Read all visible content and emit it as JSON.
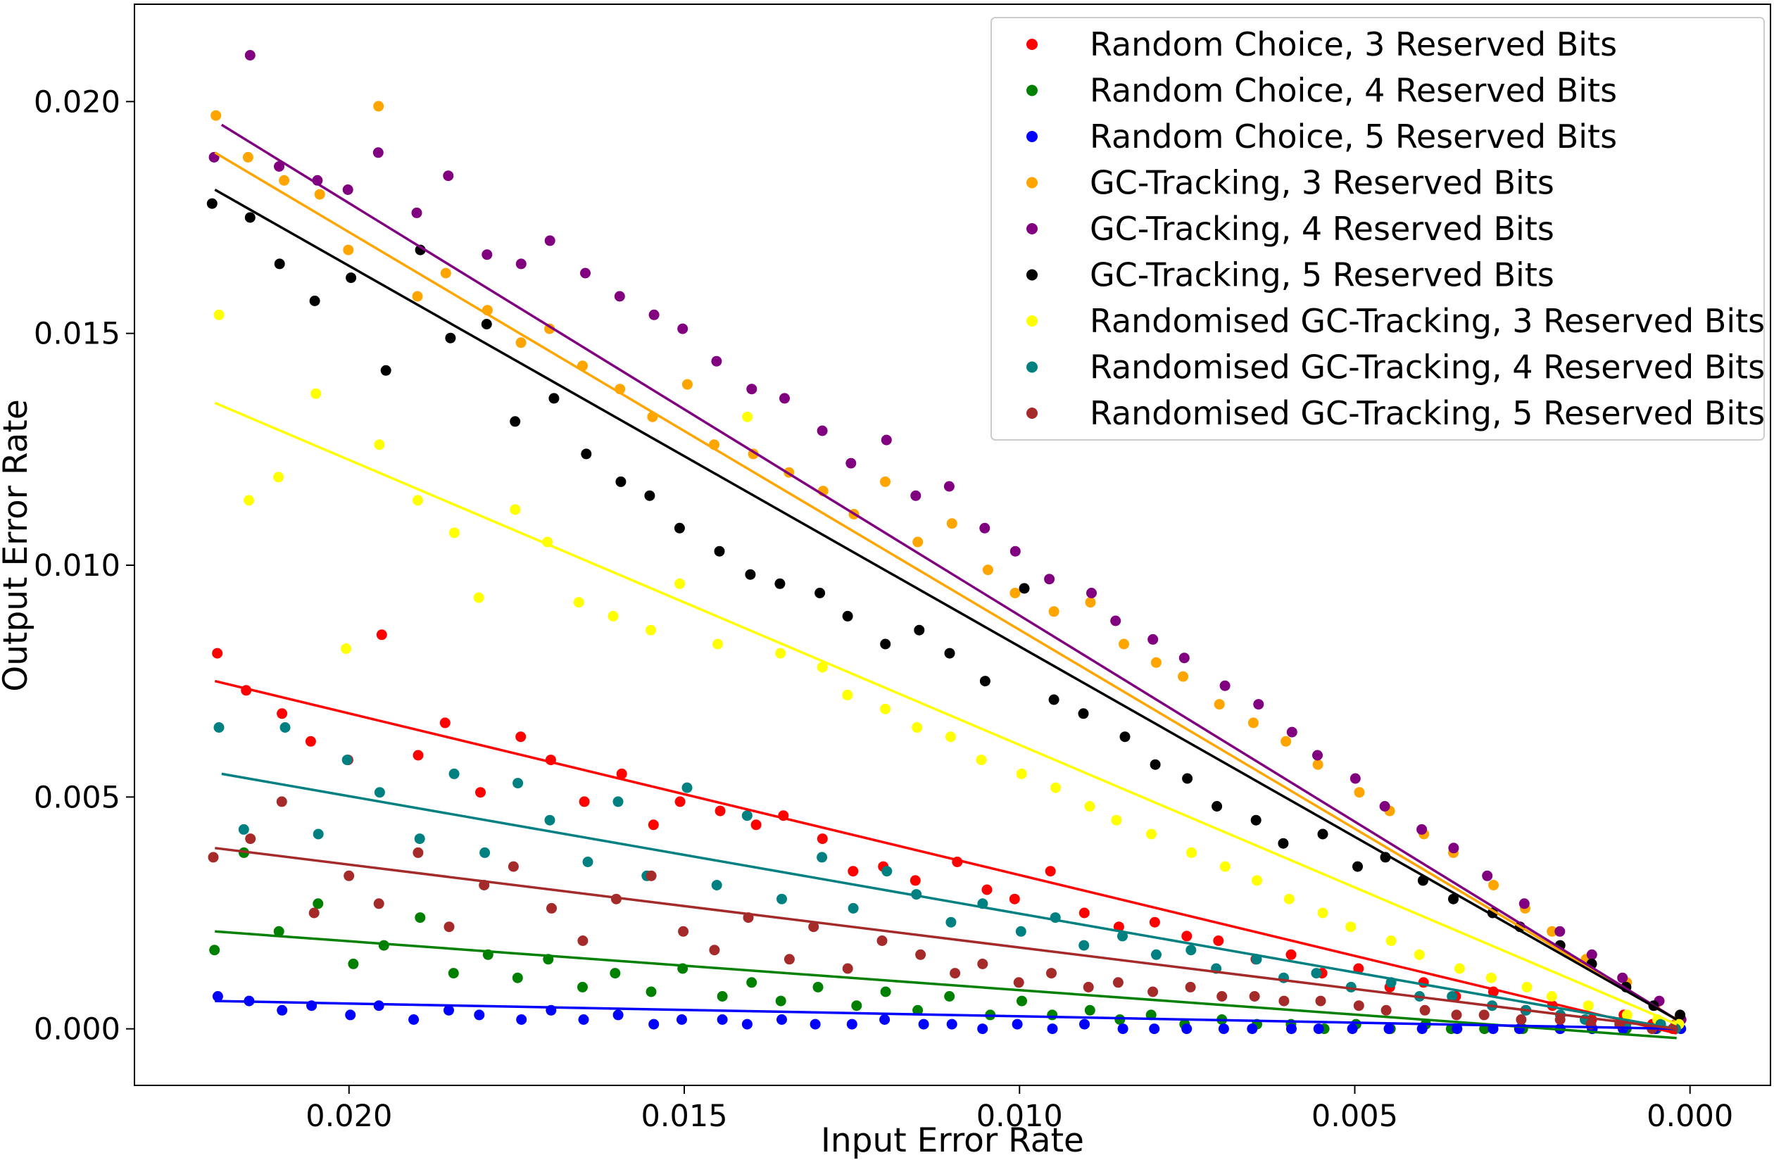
{
  "chart_data": {
    "type": "scatter",
    "title": "",
    "xlabel": "Input Error Rate",
    "ylabel": "Output Error Rate",
    "xlim": [
      0.0232,
      -0.0012
    ],
    "ylim": [
      -0.00122,
      0.0221
    ],
    "x_inverted": true,
    "grid": false,
    "legend_position": "upper right",
    "xticks": [
      0.02,
      0.015,
      0.01,
      0.005,
      0.0
    ],
    "xtick_labels": [
      "0.020",
      "0.015",
      "0.010",
      "0.005",
      "0.000"
    ],
    "yticks": [
      0.0,
      0.005,
      0.01,
      0.015,
      0.02
    ],
    "ytick_labels": [
      "0.000",
      "0.005",
      "0.010",
      "0.015",
      "0.020"
    ],
    "x": [
      0.022,
      0.0215,
      0.021,
      0.0205,
      0.02,
      0.0195,
      0.019,
      0.0185,
      0.018,
      0.0175,
      0.017,
      0.0165,
      0.016,
      0.0155,
      0.015,
      0.0145,
      0.014,
      0.0135,
      0.013,
      0.0125,
      0.012,
      0.0115,
      0.011,
      0.0105,
      0.01,
      0.0095,
      0.009,
      0.0085,
      0.008,
      0.0075,
      0.007,
      0.0065,
      0.006,
      0.0055,
      0.005,
      0.0045,
      0.004,
      0.0035,
      0.003,
      0.0025,
      0.002,
      0.0015,
      0.001,
      0.0005,
      0.0002
    ],
    "series": [
      {
        "name": "Random Choice, 3 Reserved Bits",
        "color": "#ff0000",
        "trend": [
          [
            0.022,
            0.0075
          ],
          [
            0.0002,
            -0.0001
          ]
        ],
        "y": [
          0.0081,
          0.0073,
          0.0068,
          0.0062,
          0.0058,
          0.0085,
          0.0059,
          0.0066,
          0.0051,
          0.0063,
          0.0058,
          0.0049,
          0.0055,
          0.0044,
          0.0049,
          0.0047,
          0.0044,
          0.0046,
          0.0041,
          0.0034,
          0.0035,
          0.0032,
          0.0036,
          0.003,
          0.0028,
          0.0034,
          0.0025,
          0.0022,
          0.0023,
          0.002,
          0.0019,
          0.0015,
          0.0016,
          0.0012,
          0.0013,
          0.0009,
          0.001,
          0.0007,
          0.0008,
          0.0004,
          0.0005,
          0.0002,
          0.0003,
          0.0001,
          0.0001
        ]
      },
      {
        "name": "Random Choice, 4 Reserved Bits",
        "color": "#008000",
        "trend": [
          [
            0.022,
            0.0021
          ],
          [
            0.0002,
            -0.0002
          ]
        ],
        "y": [
          0.0017,
          0.0038,
          0.0021,
          0.0027,
          0.0014,
          0.0018,
          0.0024,
          0.0012,
          0.0016,
          0.0011,
          0.0015,
          0.0009,
          0.0012,
          0.0008,
          0.0013,
          0.0007,
          0.001,
          0.0006,
          0.0009,
          0.0005,
          0.0008,
          0.0004,
          0.0007,
          0.0003,
          0.0006,
          0.0003,
          0.0004,
          0.0002,
          0.0003,
          0.0001,
          0.0002,
          0.0001,
          0.0001,
          0.0,
          0.0001,
          0.0,
          0.0001,
          0.0,
          0.0,
          0.0,
          0.0,
          0.0,
          0.0,
          0.0,
          0.0
        ]
      },
      {
        "name": "Random Choice, 5 Reserved Bits",
        "color": "#0000ff",
        "trend": [
          [
            0.022,
            0.0006
          ],
          [
            0.0002,
            0.0
          ]
        ],
        "y": [
          0.0007,
          0.0006,
          0.0004,
          0.0005,
          0.0003,
          0.0005,
          0.0002,
          0.0004,
          0.0003,
          0.0002,
          0.0004,
          0.0002,
          0.0003,
          0.0001,
          0.0002,
          0.0002,
          0.0001,
          0.0002,
          0.0001,
          0.0001,
          0.0002,
          0.0001,
          0.0001,
          0.0,
          0.0001,
          0.0,
          0.0001,
          0.0,
          0.0,
          0.0,
          0.0,
          0.0,
          0.0,
          0.0,
          0.0,
          0.0,
          0.0,
          0.0,
          0.0,
          0.0,
          0.0,
          0.0,
          0.0,
          0.0,
          0.0
        ]
      },
      {
        "name": "GC-Tracking, 3 Reserved Bits",
        "color": "#ffa500",
        "trend": [
          [
            0.022,
            0.0189
          ],
          [
            0.0002,
            0.0002
          ]
        ],
        "y": [
          0.0197,
          0.0188,
          0.0183,
          0.018,
          0.0168,
          0.0199,
          0.0158,
          0.0163,
          0.0155,
          0.0148,
          0.0151,
          0.0143,
          0.0138,
          0.0132,
          0.0139,
          0.0126,
          0.0124,
          0.012,
          0.0116,
          0.0111,
          0.0118,
          0.0105,
          0.0109,
          0.0099,
          0.0094,
          0.009,
          0.0092,
          0.0083,
          0.0079,
          0.0076,
          0.007,
          0.0066,
          0.0062,
          0.0057,
          0.0051,
          0.0047,
          0.0042,
          0.0038,
          0.0031,
          0.0026,
          0.0021,
          0.0015,
          0.001,
          0.0005,
          0.0002
        ]
      },
      {
        "name": "GC-Tracking, 4 Reserved Bits",
        "color": "#800080",
        "trend": [
          [
            0.0219,
            0.0195
          ],
          [
            0.0002,
            0.0002
          ]
        ],
        "y": [
          0.0188,
          0.021,
          0.0186,
          0.0183,
          0.0181,
          0.0189,
          0.0176,
          0.0184,
          0.0167,
          0.0165,
          0.017,
          0.0163,
          0.0158,
          0.0154,
          0.0151,
          0.0144,
          0.0138,
          0.0136,
          0.0129,
          0.0122,
          0.0127,
          0.0115,
          0.0117,
          0.0108,
          0.0103,
          0.0097,
          0.0094,
          0.0088,
          0.0084,
          0.008,
          0.0074,
          0.007,
          0.0064,
          0.0059,
          0.0054,
          0.0048,
          0.0043,
          0.0039,
          0.0033,
          0.0027,
          0.0021,
          0.0016,
          0.0011,
          0.0006,
          0.0002
        ]
      },
      {
        "name": "GC-Tracking, 5 Reserved Bits",
        "color": "#000000",
        "trend": [
          [
            0.022,
            0.0181
          ],
          [
            0.0002,
            0.0002
          ]
        ],
        "y": [
          0.0178,
          0.0175,
          0.0165,
          0.0157,
          0.0162,
          0.0142,
          0.0168,
          0.0149,
          0.0152,
          0.0131,
          0.0136,
          0.0124,
          0.0118,
          0.0115,
          0.0108,
          0.0103,
          0.0098,
          0.0096,
          0.0094,
          0.0089,
          0.0083,
          0.0086,
          0.0081,
          0.0075,
          0.0095,
          0.0071,
          0.0068,
          0.0063,
          0.0057,
          0.0054,
          0.0048,
          0.0045,
          0.004,
          0.0042,
          0.0035,
          0.0037,
          0.0032,
          0.0028,
          0.0025,
          0.0022,
          0.0018,
          0.0014,
          0.0009,
          0.0005,
          0.0003
        ]
      },
      {
        "name": "Randomised GC-Tracking, 3 Reserved Bits",
        "color": "#ffff00",
        "trend": [
          [
            0.022,
            0.0135
          ],
          [
            0.0002,
            0.0001
          ]
        ],
        "y": [
          0.0154,
          0.0114,
          0.0119,
          0.0137,
          0.0082,
          0.0126,
          0.0114,
          0.0107,
          0.0093,
          0.0112,
          0.0105,
          0.0092,
          0.0089,
          0.0086,
          0.0096,
          0.0083,
          0.0132,
          0.0081,
          0.0078,
          0.0072,
          0.0069,
          0.0065,
          0.0063,
          0.0058,
          0.0055,
          0.0052,
          0.0048,
          0.0045,
          0.0042,
          0.0038,
          0.0035,
          0.0032,
          0.0028,
          0.0025,
          0.0022,
          0.0019,
          0.0016,
          0.0013,
          0.0011,
          0.0009,
          0.0007,
          0.0005,
          0.0003,
          0.0002,
          0.0001
        ]
      },
      {
        "name": "Randomised GC-Tracking, 4 Reserved Bits",
        "color": "#008080",
        "trend": [
          [
            0.0219,
            0.0055
          ],
          [
            0.0002,
            0.0
          ]
        ],
        "y": [
          0.0065,
          0.0043,
          0.0065,
          0.0042,
          0.0058,
          0.0051,
          0.0041,
          0.0055,
          0.0038,
          0.0053,
          0.0045,
          0.0036,
          0.0049,
          0.0033,
          0.0052,
          0.0031,
          0.0046,
          0.0028,
          0.0037,
          0.0026,
          0.0034,
          0.0029,
          0.0023,
          0.0027,
          0.0021,
          0.0024,
          0.0018,
          0.002,
          0.0016,
          0.0017,
          0.0013,
          0.0015,
          0.0011,
          0.0012,
          0.0009,
          0.001,
          0.0007,
          0.0007,
          0.0005,
          0.0004,
          0.0003,
          0.0002,
          0.0001,
          0.0001,
          0.0
        ]
      },
      {
        "name": "Randomised GC-Tracking, 5 Reserved Bits",
        "color": "#a52a2a",
        "trend": [
          [
            0.022,
            0.0039
          ],
          [
            0.0002,
            0.0
          ]
        ],
        "y": [
          0.0037,
          0.0041,
          0.0049,
          0.0025,
          0.0033,
          0.0027,
          0.0038,
          0.0022,
          0.0031,
          0.0035,
          0.0026,
          0.0019,
          0.0028,
          0.0033,
          0.0021,
          0.0017,
          0.0024,
          0.0015,
          0.0022,
          0.0013,
          0.0019,
          0.0016,
          0.0012,
          0.0014,
          0.001,
          0.0012,
          0.0009,
          0.001,
          0.0008,
          0.0009,
          0.0007,
          0.0007,
          0.0006,
          0.0006,
          0.0005,
          0.0004,
          0.0004,
          0.0003,
          0.0003,
          0.0002,
          0.0002,
          0.0001,
          0.0001,
          0.0,
          0.0
        ]
      }
    ]
  }
}
